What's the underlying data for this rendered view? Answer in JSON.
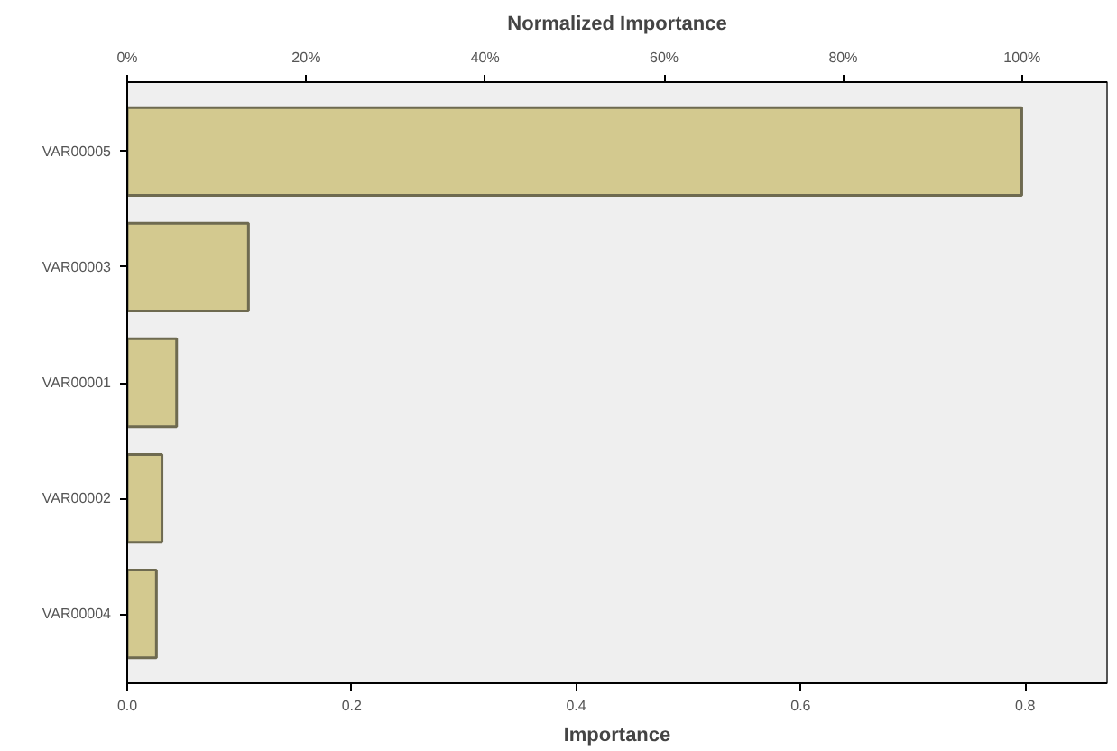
{
  "chart_data": {
    "type": "bar",
    "orientation": "horizontal",
    "title": "Normalized Importance",
    "xlabel": "Importance",
    "categories": [
      "VAR00005",
      "VAR00003",
      "VAR00001",
      "VAR00002",
      "VAR00004"
    ],
    "values": [
      0.797,
      0.108,
      0.044,
      0.031,
      0.026
    ],
    "color": "#d3c98f",
    "xlim": [
      0,
      0.873
    ],
    "xticks": [
      {
        "value": 0,
        "label": "0.0"
      },
      {
        "value": 0.2,
        "label": "0.2"
      },
      {
        "value": 0.4,
        "label": "0.4"
      },
      {
        "value": 0.6,
        "label": "0.6"
      },
      {
        "value": 0.8,
        "label": "0.8"
      }
    ],
    "x2lim": [
      0,
      109.5
    ],
    "x2ticks": [
      {
        "value": 0,
        "label": "0%"
      },
      {
        "value": 20,
        "label": "20%"
      },
      {
        "value": 40,
        "label": "40%"
      },
      {
        "value": 60,
        "label": "60%"
      },
      {
        "value": 80,
        "label": "80%"
      },
      {
        "value": 100,
        "label": "100%"
      }
    ],
    "grid": false
  }
}
